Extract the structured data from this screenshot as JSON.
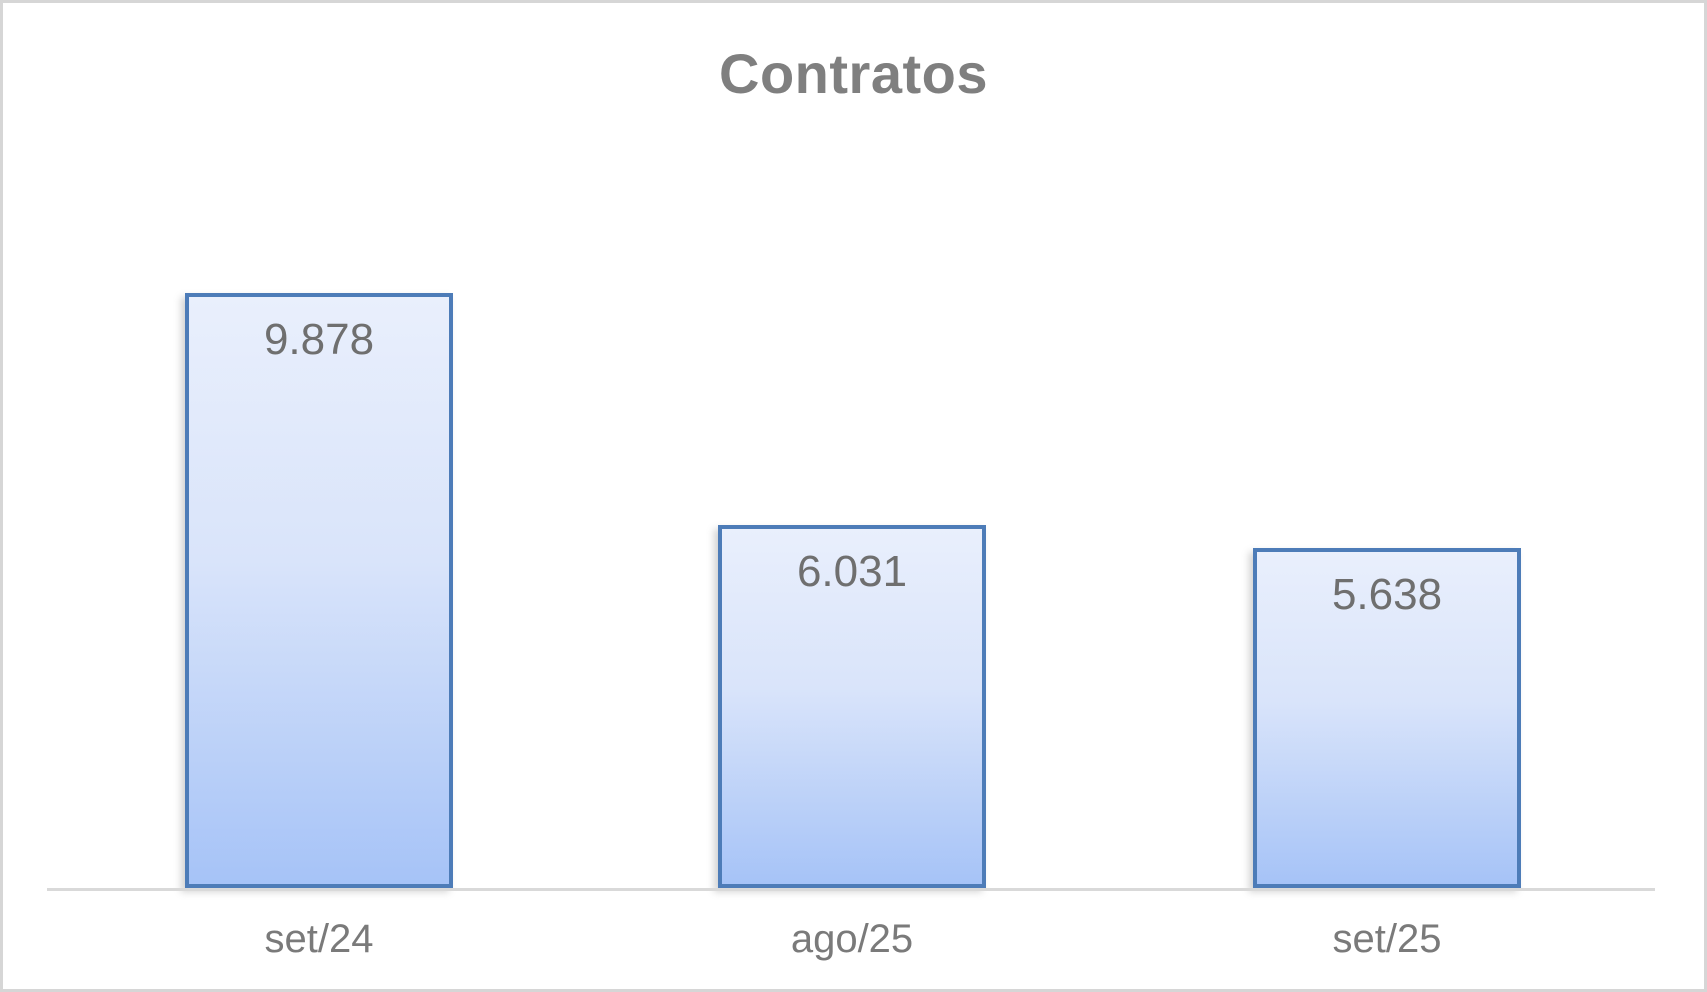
{
  "chart_data": {
    "type": "bar",
    "title": "Contratos",
    "categories": [
      "set/24",
      "ago/25",
      "set/25"
    ],
    "values": [
      9878,
      6031,
      5638
    ],
    "value_labels": [
      "9.878",
      "6.031",
      "5.638"
    ],
    "xlabel": "",
    "ylabel": "",
    "ylim": [
      0,
      10000
    ],
    "grid": false,
    "legend": false,
    "data_label_position": "inside-end",
    "colors": {
      "bar_fill_top": "#E9EFFC",
      "bar_fill_bottom": "#A6C3F7",
      "bar_border": "#4D7CB8",
      "title_text": "#7F7F7F",
      "data_label_text": "#6F6F6F",
      "category_label_text": "#7A7A7A",
      "axis_line": "#D9D9D9",
      "frame_border": "#D6D6D6",
      "background": "#FFFFFF"
    }
  }
}
